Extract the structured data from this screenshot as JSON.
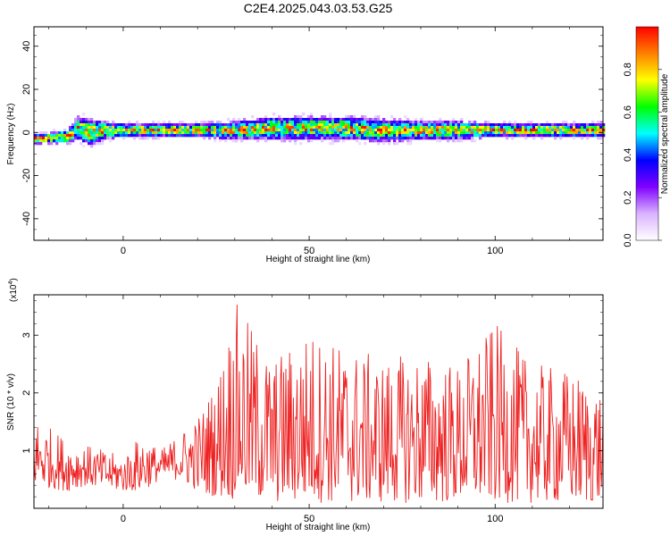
{
  "chart_data": [
    {
      "type": "heatmap",
      "title": "C2E4.2025.043.03.53.G25",
      "xlabel": "Height of straight line (km)",
      "ylabel": "Frequency (Hz)",
      "xlim": [
        -24,
        129
      ],
      "ylim": [
        -50,
        49
      ],
      "xticks": [
        0,
        50,
        100
      ],
      "yticks": [
        -40,
        -20,
        0,
        20,
        40
      ],
      "grid": false,
      "colorbar": {
        "label": "Normalized spectral amplitude",
        "range": [
          0,
          1
        ],
        "ticks": [
          "0.0",
          "0.2",
          "0.4",
          "0.6",
          "0.8"
        ],
        "colors": [
          "#ffffff",
          "#d9b3ff",
          "#8000ff",
          "#0000ff",
          "#00ffff",
          "#00ff00",
          "#ffff00",
          "#ff8000",
          "#ff0000"
        ]
      },
      "band": {
        "x": [
          -24,
          -15,
          -12,
          -9,
          -5,
          0,
          10,
          20,
          30,
          40,
          50,
          60,
          70,
          80,
          90,
          100,
          110,
          120,
          129
        ],
        "center_hz": [
          -3,
          -2,
          2,
          0,
          1,
          1,
          1,
          1,
          1,
          2,
          2,
          2,
          1,
          1,
          1,
          1,
          1,
          1,
          1
        ],
        "half_width_hz": [
          2,
          3,
          5,
          6,
          4,
          3,
          3,
          3,
          4,
          5,
          5,
          5,
          5,
          4,
          4,
          3,
          3,
          3,
          3
        ]
      }
    },
    {
      "type": "line",
      "xlabel": "Height of straight line (km)",
      "ylabel": "SNR (10 * v/v)",
      "y_exponent": "(x10",
      "y_exponent_power": "4",
      "y_exponent_close": ")",
      "xlim": [
        -24,
        129
      ],
      "ylim": [
        0,
        3.7
      ],
      "xticks": [
        0,
        50,
        100
      ],
      "yticks": [
        1,
        2,
        3
      ],
      "grid": false,
      "series_color": "#ee2222",
      "envelope": {
        "x": [
          -24,
          -15,
          -10,
          0,
          5,
          10,
          15,
          20,
          25,
          30,
          40,
          50,
          60,
          70,
          80,
          90,
          100,
          110,
          120,
          129
        ],
        "min": [
          0.4,
          0.3,
          0.4,
          0.3,
          0.3,
          0.5,
          0.5,
          0.3,
          0.2,
          0.15,
          0.1,
          0.1,
          0.1,
          0.1,
          0.1,
          0.1,
          0.1,
          0.1,
          0.1,
          0.1
        ],
        "max": [
          1.6,
          1.2,
          1.1,
          0.9,
          1.3,
          1.0,
          1.3,
          1.6,
          2.2,
          3.6,
          2.6,
          3.1,
          2.8,
          2.6,
          2.7,
          2.5,
          3.2,
          2.5,
          2.4,
          2.1
        ]
      }
    }
  ]
}
